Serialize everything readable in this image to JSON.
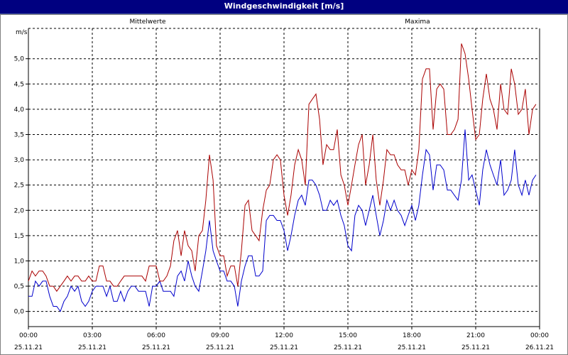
{
  "window": {
    "title": "Windgeschwindigkeit [m/s]"
  },
  "colors": {
    "titlebar": "#000080",
    "series_mean": "#0000cc",
    "series_max": "#aa0000",
    "grid": "#000000"
  },
  "chart_data": {
    "type": "line",
    "title": "Windgeschwindigkeit [m/s]",
    "ylabel": "m/s",
    "ylim": [
      -0.3,
      5.6
    ],
    "yticks": [
      "0,0",
      "0,5",
      "1,0",
      "1,5",
      "2,0",
      "2,5",
      "3,0",
      "3,5",
      "4,0",
      "4,5",
      "5,0"
    ],
    "ytick_values": [
      0.0,
      0.5,
      1.0,
      1.5,
      2.0,
      2.5,
      3.0,
      3.5,
      4.0,
      4.5,
      5.0
    ],
    "xlim": [
      0,
      24
    ],
    "xticks": [
      {
        "time": "00:00",
        "date": "25.11.21"
      },
      {
        "time": "03:00",
        "date": "25.11.21"
      },
      {
        "time": "06:00",
        "date": "25.11.21"
      },
      {
        "time": "09:00",
        "date": "25.11.21"
      },
      {
        "time": "12:00",
        "date": "25.11.21"
      },
      {
        "time": "15:00",
        "date": "25.11.21"
      },
      {
        "time": "18:00",
        "date": "25.11.21"
      },
      {
        "time": "21:00",
        "date": "25.11.21"
      },
      {
        "time": "00:00",
        "date": "26.11.21"
      }
    ],
    "xtick_values": [
      0,
      3,
      6,
      9,
      12,
      15,
      18,
      21,
      24
    ],
    "grid": true,
    "series": [
      {
        "name": "Mittelwerte",
        "color": "#0000cc",
        "points": [
          [
            0.0,
            0.3
          ],
          [
            0.17,
            0.3
          ],
          [
            0.33,
            0.6
          ],
          [
            0.5,
            0.5
          ],
          [
            0.67,
            0.6
          ],
          [
            0.83,
            0.6
          ],
          [
            1.0,
            0.3
          ],
          [
            1.17,
            0.1
          ],
          [
            1.33,
            0.1
          ],
          [
            1.5,
            0.0
          ],
          [
            1.67,
            0.2
          ],
          [
            1.83,
            0.3
          ],
          [
            2.0,
            0.5
          ],
          [
            2.17,
            0.4
          ],
          [
            2.33,
            0.5
          ],
          [
            2.5,
            0.2
          ],
          [
            2.67,
            0.1
          ],
          [
            2.83,
            0.2
          ],
          [
            3.0,
            0.4
          ],
          [
            3.17,
            0.5
          ],
          [
            3.33,
            0.5
          ],
          [
            3.5,
            0.5
          ],
          [
            3.67,
            0.3
          ],
          [
            3.83,
            0.5
          ],
          [
            4.0,
            0.2
          ],
          [
            4.17,
            0.2
          ],
          [
            4.33,
            0.4
          ],
          [
            4.5,
            0.2
          ],
          [
            4.67,
            0.4
          ],
          [
            4.83,
            0.5
          ],
          [
            5.0,
            0.5
          ],
          [
            5.17,
            0.4
          ],
          [
            5.33,
            0.4
          ],
          [
            5.5,
            0.4
          ],
          [
            5.67,
            0.1
          ],
          [
            5.83,
            0.5
          ],
          [
            6.0,
            0.5
          ],
          [
            6.17,
            0.6
          ],
          [
            6.33,
            0.4
          ],
          [
            6.5,
            0.4
          ],
          [
            6.67,
            0.4
          ],
          [
            6.83,
            0.3
          ],
          [
            7.0,
            0.7
          ],
          [
            7.17,
            0.8
          ],
          [
            7.33,
            0.6
          ],
          [
            7.5,
            1.0
          ],
          [
            7.67,
            0.7
          ],
          [
            7.83,
            0.5
          ],
          [
            8.0,
            0.4
          ],
          [
            8.17,
            0.8
          ],
          [
            8.33,
            1.2
          ],
          [
            8.5,
            1.8
          ],
          [
            8.67,
            1.2
          ],
          [
            8.83,
            1.0
          ],
          [
            9.0,
            0.8
          ],
          [
            9.17,
            0.8
          ],
          [
            9.33,
            0.6
          ],
          [
            9.5,
            0.6
          ],
          [
            9.67,
            0.5
          ],
          [
            9.83,
            0.1
          ],
          [
            10.0,
            0.6
          ],
          [
            10.17,
            0.9
          ],
          [
            10.33,
            1.1
          ],
          [
            10.5,
            1.1
          ],
          [
            10.67,
            0.7
          ],
          [
            10.83,
            0.7
          ],
          [
            11.0,
            0.8
          ],
          [
            11.17,
            1.8
          ],
          [
            11.33,
            1.9
          ],
          [
            11.5,
            1.9
          ],
          [
            11.67,
            1.8
          ],
          [
            11.83,
            1.8
          ],
          [
            12.0,
            1.6
          ],
          [
            12.17,
            1.2
          ],
          [
            12.33,
            1.5
          ],
          [
            12.5,
            1.9
          ],
          [
            12.67,
            2.2
          ],
          [
            12.83,
            2.3
          ],
          [
            13.0,
            2.1
          ],
          [
            13.17,
            2.6
          ],
          [
            13.33,
            2.6
          ],
          [
            13.5,
            2.5
          ],
          [
            13.67,
            2.3
          ],
          [
            13.83,
            2.0
          ],
          [
            14.0,
            2.0
          ],
          [
            14.17,
            2.2
          ],
          [
            14.33,
            2.1
          ],
          [
            14.5,
            2.2
          ],
          [
            14.67,
            1.9
          ],
          [
            14.83,
            1.7
          ],
          [
            15.0,
            1.3
          ],
          [
            15.17,
            1.2
          ],
          [
            15.33,
            1.9
          ],
          [
            15.5,
            2.1
          ],
          [
            15.67,
            2.0
          ],
          [
            15.83,
            1.7
          ],
          [
            16.0,
            2.0
          ],
          [
            16.17,
            2.3
          ],
          [
            16.33,
            1.9
          ],
          [
            16.5,
            1.5
          ],
          [
            16.67,
            1.8
          ],
          [
            16.83,
            2.2
          ],
          [
            17.0,
            2.0
          ],
          [
            17.17,
            2.2
          ],
          [
            17.33,
            2.0
          ],
          [
            17.5,
            1.9
          ],
          [
            17.67,
            1.7
          ],
          [
            17.83,
            1.9
          ],
          [
            18.0,
            2.1
          ],
          [
            18.17,
            1.8
          ],
          [
            18.33,
            2.1
          ],
          [
            18.5,
            2.7
          ],
          [
            18.67,
            3.2
          ],
          [
            18.83,
            3.1
          ],
          [
            19.0,
            2.4
          ],
          [
            19.17,
            2.9
          ],
          [
            19.33,
            2.9
          ],
          [
            19.5,
            2.8
          ],
          [
            19.67,
            2.4
          ],
          [
            19.83,
            2.4
          ],
          [
            20.0,
            2.3
          ],
          [
            20.17,
            2.2
          ],
          [
            20.33,
            2.6
          ],
          [
            20.5,
            3.6
          ],
          [
            20.67,
            2.6
          ],
          [
            20.83,
            2.7
          ],
          [
            21.0,
            2.4
          ],
          [
            21.17,
            2.1
          ],
          [
            21.33,
            2.8
          ],
          [
            21.5,
            3.2
          ],
          [
            21.67,
            2.9
          ],
          [
            21.83,
            2.7
          ],
          [
            22.0,
            2.5
          ],
          [
            22.17,
            3.0
          ],
          [
            22.33,
            2.3
          ],
          [
            22.5,
            2.4
          ],
          [
            22.67,
            2.6
          ],
          [
            22.83,
            3.2
          ],
          [
            23.0,
            2.5
          ],
          [
            23.17,
            2.3
          ],
          [
            23.33,
            2.6
          ],
          [
            23.5,
            2.3
          ],
          [
            23.67,
            2.6
          ],
          [
            23.83,
            2.7
          ]
        ]
      },
      {
        "name": "Maxima",
        "color": "#aa0000",
        "points": [
          [
            0.0,
            0.6
          ],
          [
            0.17,
            0.8
          ],
          [
            0.33,
            0.7
          ],
          [
            0.5,
            0.8
          ],
          [
            0.67,
            0.8
          ],
          [
            0.83,
            0.7
          ],
          [
            1.0,
            0.5
          ],
          [
            1.17,
            0.5
          ],
          [
            1.33,
            0.4
          ],
          [
            1.5,
            0.5
          ],
          [
            1.67,
            0.6
          ],
          [
            1.83,
            0.7
          ],
          [
            2.0,
            0.6
          ],
          [
            2.17,
            0.7
          ],
          [
            2.33,
            0.7
          ],
          [
            2.5,
            0.6
          ],
          [
            2.67,
            0.6
          ],
          [
            2.83,
            0.7
          ],
          [
            3.0,
            0.6
          ],
          [
            3.17,
            0.6
          ],
          [
            3.33,
            0.9
          ],
          [
            3.5,
            0.9
          ],
          [
            3.67,
            0.6
          ],
          [
            3.83,
            0.6
          ],
          [
            4.0,
            0.5
          ],
          [
            4.17,
            0.5
          ],
          [
            4.33,
            0.6
          ],
          [
            4.5,
            0.7
          ],
          [
            4.67,
            0.7
          ],
          [
            4.83,
            0.7
          ],
          [
            5.0,
            0.7
          ],
          [
            5.17,
            0.7
          ],
          [
            5.33,
            0.7
          ],
          [
            5.5,
            0.6
          ],
          [
            5.67,
            0.9
          ],
          [
            5.83,
            0.9
          ],
          [
            6.0,
            0.9
          ],
          [
            6.17,
            0.6
          ],
          [
            6.33,
            0.6
          ],
          [
            6.5,
            0.7
          ],
          [
            6.67,
            0.9
          ],
          [
            6.83,
            1.4
          ],
          [
            7.0,
            1.6
          ],
          [
            7.17,
            1.1
          ],
          [
            7.33,
            1.6
          ],
          [
            7.5,
            1.3
          ],
          [
            7.67,
            1.2
          ],
          [
            7.83,
            0.8
          ],
          [
            8.0,
            1.5
          ],
          [
            8.17,
            1.6
          ],
          [
            8.33,
            2.2
          ],
          [
            8.5,
            3.1
          ],
          [
            8.67,
            2.6
          ],
          [
            8.83,
            1.3
          ],
          [
            9.0,
            1.1
          ],
          [
            9.17,
            1.1
          ],
          [
            9.33,
            0.7
          ],
          [
            9.5,
            0.9
          ],
          [
            9.67,
            0.9
          ],
          [
            9.83,
            0.5
          ],
          [
            10.0,
            1.2
          ],
          [
            10.17,
            2.1
          ],
          [
            10.33,
            2.2
          ],
          [
            10.5,
            1.6
          ],
          [
            10.67,
            1.5
          ],
          [
            10.83,
            1.4
          ],
          [
            11.0,
            2.0
          ],
          [
            11.17,
            2.4
          ],
          [
            11.33,
            2.5
          ],
          [
            11.5,
            3.0
          ],
          [
            11.67,
            3.1
          ],
          [
            11.83,
            3.0
          ],
          [
            12.0,
            2.3
          ],
          [
            12.17,
            1.9
          ],
          [
            12.33,
            2.3
          ],
          [
            12.5,
            2.9
          ],
          [
            12.67,
            3.2
          ],
          [
            12.83,
            3.0
          ],
          [
            13.0,
            2.5
          ],
          [
            13.17,
            4.1
          ],
          [
            13.33,
            4.2
          ],
          [
            13.5,
            4.3
          ],
          [
            13.67,
            3.8
          ],
          [
            13.83,
            2.9
          ],
          [
            14.0,
            3.3
          ],
          [
            14.17,
            3.2
          ],
          [
            14.33,
            3.2
          ],
          [
            14.5,
            3.6
          ],
          [
            14.67,
            2.7
          ],
          [
            14.83,
            2.5
          ],
          [
            15.0,
            2.1
          ],
          [
            15.17,
            2.5
          ],
          [
            15.33,
            2.9
          ],
          [
            15.5,
            3.3
          ],
          [
            15.67,
            3.5
          ],
          [
            15.83,
            2.5
          ],
          [
            16.0,
            2.9
          ],
          [
            16.17,
            3.5
          ],
          [
            16.33,
            2.6
          ],
          [
            16.5,
            2.1
          ],
          [
            16.67,
            2.6
          ],
          [
            16.83,
            3.2
          ],
          [
            17.0,
            3.1
          ],
          [
            17.17,
            3.1
          ],
          [
            17.33,
            2.9
          ],
          [
            17.5,
            2.8
          ],
          [
            17.67,
            2.8
          ],
          [
            17.83,
            2.5
          ],
          [
            18.0,
            2.8
          ],
          [
            18.17,
            2.7
          ],
          [
            18.33,
            3.2
          ],
          [
            18.5,
            4.6
          ],
          [
            18.67,
            4.8
          ],
          [
            18.83,
            4.8
          ],
          [
            19.0,
            3.6
          ],
          [
            19.17,
            4.4
          ],
          [
            19.33,
            4.5
          ],
          [
            19.5,
            4.4
          ],
          [
            19.67,
            3.5
          ],
          [
            19.83,
            3.5
          ],
          [
            20.0,
            3.6
          ],
          [
            20.17,
            3.8
          ],
          [
            20.33,
            5.3
          ],
          [
            20.5,
            5.1
          ],
          [
            20.67,
            4.6
          ],
          [
            20.83,
            4.0
          ],
          [
            21.0,
            3.4
          ],
          [
            21.17,
            3.5
          ],
          [
            21.33,
            4.2
          ],
          [
            21.5,
            4.7
          ],
          [
            21.67,
            4.2
          ],
          [
            21.83,
            4.0
          ],
          [
            22.0,
            3.6
          ],
          [
            22.17,
            4.5
          ],
          [
            22.33,
            4.0
          ],
          [
            22.5,
            3.9
          ],
          [
            22.67,
            4.8
          ],
          [
            22.83,
            4.5
          ],
          [
            23.0,
            3.9
          ],
          [
            23.17,
            4.0
          ],
          [
            23.33,
            4.4
          ],
          [
            23.5,
            3.5
          ],
          [
            23.67,
            4.0
          ],
          [
            23.83,
            4.1
          ]
        ]
      }
    ]
  }
}
